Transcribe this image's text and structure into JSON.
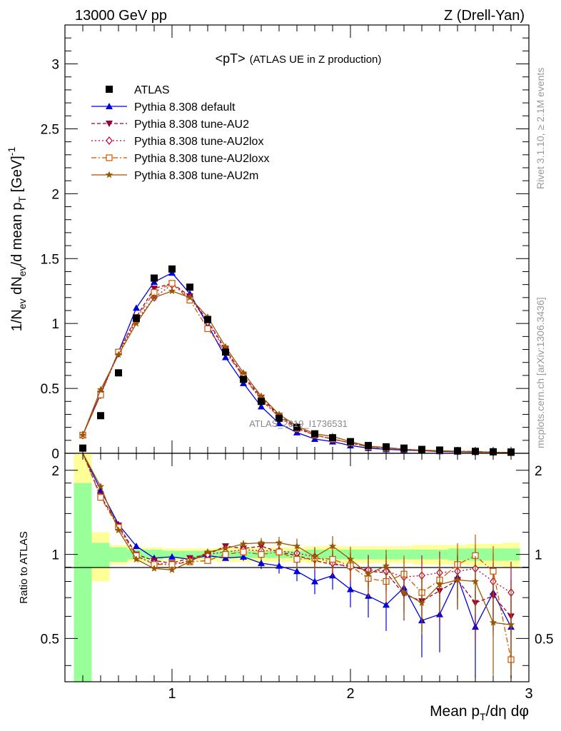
{
  "header": {
    "left": "13000 GeV pp",
    "right": "Z (Drell-Yan)"
  },
  "side_text": {
    "rivet": "Rivet 3.1.10, ≥ 2.1M events",
    "mcplots": "mcplots.cern.ch [arXiv:1306.3436]"
  },
  "watermark": "ATLAS_2019_I1736531",
  "colors": {
    "atlas": "#000000",
    "default": "#0000dd",
    "au2": "#990033",
    "au2lox": "#bb0044",
    "au2loxx": "#cc5500",
    "au2m": "#995500",
    "band_inner": "#99ff99",
    "band_outer": "#ffff99"
  },
  "chart_data": [
    {
      "type": "line",
      "title": "<pT>",
      "title_note": "(ATLAS UE in Z production)",
      "ylabel": {
        "a": "1/N",
        "b": "ev",
        "c": " dN",
        "d": "ev",
        "e": "/d mean p",
        "f": "T",
        "g": " [GeV]",
        "h": "-1"
      },
      "xlim": [
        0.4,
        3.0
      ],
      "ylim": [
        0,
        3.3
      ],
      "yticks": [
        0,
        0.5,
        1,
        1.5,
        2,
        2.5,
        3
      ],
      "ytick_labels": [
        "0",
        "0.5",
        "1",
        "1.5",
        "2",
        "2.5",
        "3"
      ],
      "x": [
        0.5,
        0.6,
        0.7,
        0.8,
        0.9,
        1.0,
        1.1,
        1.2,
        1.3,
        1.4,
        1.5,
        1.6,
        1.7,
        1.8,
        1.9,
        2.0,
        2.1,
        2.2,
        2.3,
        2.4,
        2.5,
        2.6,
        2.7,
        2.8,
        2.9
      ],
      "series": [
        {
          "name": "ATLAS",
          "values": [
            0.04,
            0.29,
            0.62,
            1.04,
            1.35,
            1.42,
            1.28,
            1.03,
            0.78,
            0.57,
            0.4,
            0.27,
            0.2,
            0.15,
            0.12,
            0.09,
            0.06,
            0.05,
            0.04,
            0.03,
            0.025,
            0.02,
            0.015,
            0.012,
            0.01
          ]
        },
        {
          "name": "Pythia 8.308 default",
          "values": [
            0.14,
            0.46,
            0.78,
            1.12,
            1.32,
            1.39,
            1.23,
            0.99,
            0.74,
            0.54,
            0.36,
            0.23,
            0.16,
            0.11,
            0.09,
            0.06,
            0.04,
            0.03,
            0.025,
            0.02,
            0.015,
            0.012,
            0.01,
            0.008,
            0.006
          ]
        },
        {
          "name": "Pythia 8.308 tune-AU2",
          "values": [
            0.14,
            0.46,
            0.78,
            1.05,
            1.27,
            1.31,
            1.21,
            1.02,
            0.8,
            0.6,
            0.43,
            0.29,
            0.2,
            0.14,
            0.11,
            0.08,
            0.05,
            0.04,
            0.03,
            0.02,
            0.02,
            0.015,
            0.01,
            0.008,
            0.006
          ]
        },
        {
          "name": "Pythia 8.308 tune-AU2lox",
          "values": [
            0.14,
            0.45,
            0.77,
            1.02,
            1.2,
            1.3,
            1.2,
            1.01,
            0.79,
            0.59,
            0.42,
            0.28,
            0.19,
            0.14,
            0.11,
            0.08,
            0.05,
            0.04,
            0.03,
            0.025,
            0.02,
            0.015,
            0.012,
            0.009,
            0.007
          ]
        },
        {
          "name": "Pythia 8.308 tune-AU2loxx",
          "values": [
            0.14,
            0.45,
            0.78,
            1.04,
            1.24,
            1.31,
            1.18,
            0.96,
            0.78,
            0.59,
            0.41,
            0.28,
            0.19,
            0.14,
            0.11,
            0.08,
            0.05,
            0.04,
            0.035,
            0.022,
            0.02,
            0.017,
            0.015,
            0.01,
            0.004
          ]
        },
        {
          "name": "Pythia 8.308 tune-AU2m",
          "values": [
            0.14,
            0.49,
            0.76,
            1.0,
            1.2,
            1.25,
            1.2,
            1.05,
            0.82,
            0.62,
            0.44,
            0.3,
            0.21,
            0.15,
            0.13,
            0.09,
            0.055,
            0.045,
            0.03,
            0.025,
            0.02,
            0.015,
            0.012,
            0.007,
            0.005
          ]
        }
      ]
    },
    {
      "type": "line",
      "ylabel": "Ratio to ATLAS",
      "xlabel": "Mean p",
      "xlabel_sub": "T",
      "xlabel_tail": "/dη dφ",
      "xlim": [
        0.4,
        3.0
      ],
      "ylim": [
        0.35,
        2.3
      ],
      "xticks": [
        1,
        2,
        3
      ],
      "xtick_labels": [
        "1",
        "2",
        "3"
      ],
      "yticks": [
        0.5,
        1,
        2
      ],
      "ytick_labels": [
        "0.5",
        "1",
        "2"
      ],
      "x": [
        0.5,
        0.6,
        0.7,
        0.8,
        0.9,
        1.0,
        1.1,
        1.2,
        1.3,
        1.4,
        1.5,
        1.6,
        1.7,
        1.8,
        1.9,
        2.0,
        2.1,
        2.2,
        2.3,
        2.4,
        2.5,
        2.6,
        2.7,
        2.8,
        2.9
      ],
      "band_inner": [
        1.8,
        0.9,
        0.94,
        0.96,
        0.96,
        0.97,
        0.97,
        0.97,
        0.97,
        0.97,
        0.97,
        0.97,
        0.97,
        0.96,
        0.96,
        0.96,
        0.96,
        0.96,
        0.96,
        0.96,
        0.96,
        0.95,
        0.95,
        0.95,
        0.95
      ],
      "band_outer": [
        2.4,
        0.8,
        0.92,
        0.94,
        0.94,
        0.95,
        0.95,
        0.95,
        0.94,
        0.94,
        0.94,
        0.94,
        0.94,
        0.93,
        0.93,
        0.93,
        0.93,
        0.93,
        0.93,
        0.92,
        0.92,
        0.92,
        0.91,
        0.91,
        0.9
      ],
      "series": [
        {
          "name": "Pythia 8.308 default",
          "values": [
            2.4,
            1.7,
            1.28,
            1.07,
            0.97,
            0.98,
            0.96,
            0.99,
            0.97,
            0.98,
            0.93,
            0.91,
            0.87,
            0.8,
            0.84,
            0.75,
            0.71,
            0.66,
            0.76,
            0.58,
            0.61,
            0.83,
            0.55,
            0.73,
            0.55
          ]
        },
        {
          "name": "Pythia 8.308 tune-AU2",
          "values": [
            2.4,
            1.62,
            1.27,
            1.0,
            0.95,
            0.93,
            0.97,
            1.0,
            1.07,
            1.05,
            1.07,
            1.02,
            0.99,
            0.95,
            0.92,
            0.91,
            0.87,
            0.86,
            0.72,
            0.68,
            0.74,
            0.81,
            0.67,
            0.71,
            0.6
          ]
        },
        {
          "name": "Pythia 8.308 tune-AU2lox",
          "values": [
            2.4,
            1.61,
            1.25,
            0.98,
            0.93,
            0.92,
            0.95,
            1.0,
            1.02,
            1.04,
            1.03,
            1.03,
            1.01,
            0.98,
            0.93,
            0.9,
            0.88,
            0.87,
            0.83,
            0.84,
            0.86,
            0.87,
            0.89,
            0.8,
            0.73
          ]
        },
        {
          "name": "Pythia 8.308 tune-AU2loxx",
          "values": [
            2.4,
            1.6,
            1.25,
            0.99,
            0.92,
            0.92,
            0.94,
            0.95,
            1.0,
            1.02,
            1.0,
            1.02,
            0.96,
            0.97,
            0.96,
            0.91,
            0.82,
            0.8,
            0.85,
            0.73,
            0.81,
            0.92,
            0.99,
            0.87,
            0.42
          ]
        },
        {
          "name": "Pythia 8.308 tune-AU2m",
          "values": [
            2.4,
            1.75,
            1.22,
            0.96,
            0.89,
            0.88,
            0.94,
            1.02,
            1.05,
            1.09,
            1.1,
            1.1,
            1.07,
            0.98,
            1.07,
            0.96,
            0.85,
            0.91,
            0.73,
            0.67,
            0.78,
            0.81,
            0.8,
            0.57,
            0.56
          ]
        }
      ]
    }
  ]
}
